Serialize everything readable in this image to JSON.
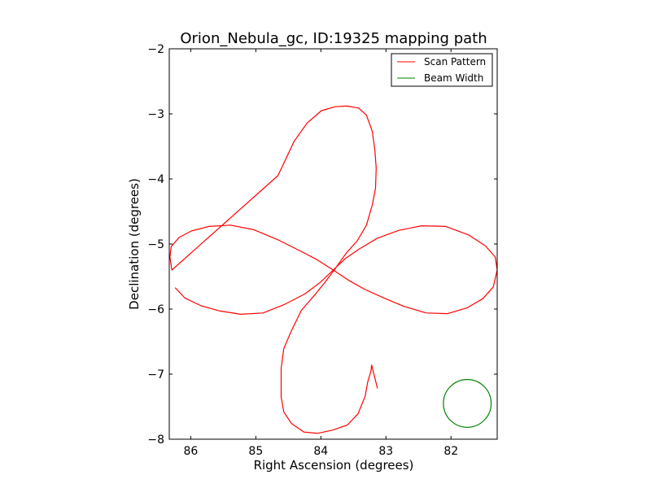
{
  "chart_data": {
    "type": "line",
    "title": "Orion_Nebula_gc, ID:19325 mapping path",
    "xlabel": "Right Ascension (degrees)",
    "ylabel": "Declination (degrees)",
    "xlim": [
      86.33,
      81.29
    ],
    "ylim": [
      -8,
      -2
    ],
    "xticks": [
      86,
      85,
      84,
      83,
      82
    ],
    "yticks": [
      -2,
      -3,
      -4,
      -5,
      -6,
      -7,
      -8
    ],
    "xtick_labels": [
      "86",
      "85",
      "84",
      "83",
      "82"
    ],
    "ytick_labels": [
      "−2",
      "−3",
      "−4",
      "−5",
      "−6",
      "−7",
      "−8"
    ],
    "legend": {
      "position": "top-right",
      "entries": [
        {
          "label": "Scan Pattern",
          "color": "#ff0000"
        },
        {
          "label": "Beam Width",
          "color": "#008000"
        }
      ]
    },
    "series": [
      {
        "name": "Scan Pattern",
        "color": "#ff0000",
        "x": [
          86.24,
          86.09,
          85.84,
          85.55,
          85.23,
          84.89,
          84.56,
          84.25,
          84.01,
          83.81,
          83.62,
          83.4,
          83.13,
          82.8,
          82.45,
          82.08,
          81.73,
          81.47,
          81.32,
          81.29,
          81.35,
          81.51,
          81.75,
          82.05,
          82.38,
          82.72,
          83.03,
          83.32,
          83.57,
          83.81,
          84.06,
          84.33,
          84.67,
          85.03,
          85.39,
          85.72,
          85.99,
          86.18,
          86.3,
          86.32,
          86.29,
          84.66,
          84.56,
          84.41,
          84.21,
          83.99,
          83.78,
          83.6,
          83.42,
          83.3,
          83.21,
          83.17,
          83.15,
          83.16,
          83.21,
          83.3,
          83.44,
          83.61,
          83.78,
          83.93,
          84.1,
          84.3,
          84.46,
          84.57,
          84.61,
          84.61,
          84.57,
          84.45,
          84.26,
          84.05,
          83.82,
          83.59,
          83.43,
          83.32,
          83.28,
          83.23,
          83.22,
          83.13
        ],
        "y": [
          -5.67,
          -5.83,
          -5.95,
          -6.03,
          -6.08,
          -6.06,
          -5.93,
          -5.77,
          -5.59,
          -5.4,
          -5.22,
          -5.07,
          -4.91,
          -4.79,
          -4.72,
          -4.73,
          -4.86,
          -5.03,
          -5.2,
          -5.4,
          -5.66,
          -5.84,
          -5.98,
          -6.07,
          -6.06,
          -5.96,
          -5.83,
          -5.7,
          -5.56,
          -5.4,
          -5.24,
          -5.1,
          -4.93,
          -4.78,
          -4.71,
          -4.73,
          -4.8,
          -4.9,
          -5.04,
          -5.2,
          -5.4,
          -3.95,
          -3.74,
          -3.42,
          -3.14,
          -2.95,
          -2.89,
          -2.88,
          -2.91,
          -3.02,
          -3.27,
          -3.56,
          -3.83,
          -4.14,
          -4.4,
          -4.71,
          -4.95,
          -5.14,
          -5.38,
          -5.58,
          -5.79,
          -6.02,
          -6.35,
          -6.61,
          -6.91,
          -7.35,
          -7.58,
          -7.76,
          -7.89,
          -7.91,
          -7.86,
          -7.78,
          -7.61,
          -7.34,
          -7.12,
          -6.95,
          -6.86,
          -7.22
        ]
      },
      {
        "name": "Beam Width",
        "color": "#008000",
        "shape": "circle",
        "center": [
          81.75,
          -7.45
        ],
        "radius": 0.367
      }
    ]
  }
}
